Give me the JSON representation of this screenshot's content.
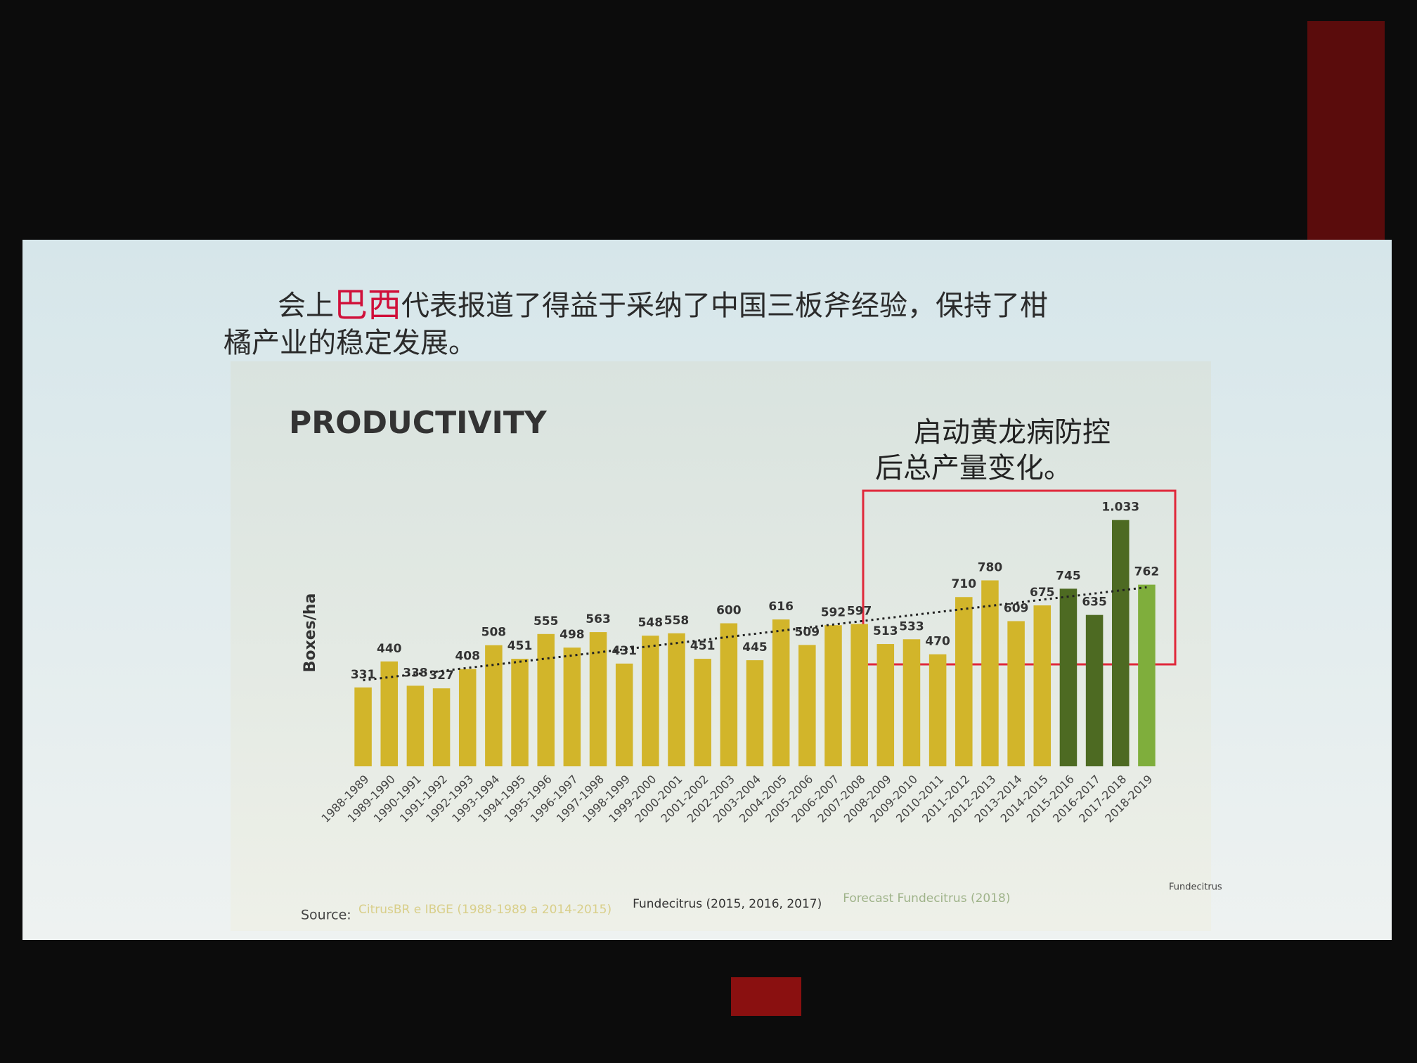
{
  "header": {
    "prefix": "会上",
    "highlight": "巴西",
    "suffix": "代表报道了得益于采纳了中国三板斧经验，保持了柑",
    "line2": "橘产业的稳定发展。"
  },
  "chart_data": {
    "type": "bar",
    "title": "PRODUCTIVITY",
    "y_label": "Boxes/ha",
    "annotation": [
      "启动黄龙病防控",
      "后总产量变化。"
    ],
    "categories": [
      "1988-1989",
      "1989-1990",
      "1990-1991",
      "1991-1992",
      "1992-1993",
      "1993-1994",
      "1994-1995",
      "1995-1996",
      "1996-1997",
      "1997-1998",
      "1998-1999",
      "1999-2000",
      "2000-2001",
      "2001-2002",
      "2002-2003",
      "2003-2004",
      "2004-2005",
      "2005-2006",
      "2006-2007",
      "2007-2008",
      "2008-2009",
      "2009-2010",
      "2010-2011",
      "2011-2012",
      "2012-2013",
      "2013-2014",
      "2014-2015",
      "2015-2016",
      "2016-2017",
      "2017-2018",
      "2018-2019"
    ],
    "values": [
      331,
      440,
      338,
      327,
      408,
      508,
      451,
      555,
      498,
      563,
      431,
      548,
      558,
      451,
      600,
      445,
      616,
      509,
      592,
      597,
      513,
      533,
      470,
      710,
      780,
      609,
      675,
      745,
      635,
      1033,
      762
    ],
    "value_labels": [
      "331",
      "440",
      "338",
      "327",
      "408",
      "508",
      "451",
      "555",
      "498",
      "563",
      "431",
      "548",
      "558",
      "451",
      "600",
      "445",
      "616",
      "509",
      "592",
      "597",
      "513",
      "533",
      "470",
      "710",
      "780",
      "609",
      "675",
      "745",
      "635",
      "1.033",
      "762"
    ],
    "colors": [
      "#d2b52a",
      "#d2b52a",
      "#d2b52a",
      "#d2b52a",
      "#d2b52a",
      "#d2b52a",
      "#d2b52a",
      "#d2b52a",
      "#d2b52a",
      "#d2b52a",
      "#d2b52a",
      "#d2b52a",
      "#d2b52a",
      "#d2b52a",
      "#d2b52a",
      "#d2b52a",
      "#d2b52a",
      "#d2b52a",
      "#d2b52a",
      "#d2b52a",
      "#d2b52a",
      "#d2b52a",
      "#d2b52a",
      "#d2b52a",
      "#d2b52a",
      "#d2b52a",
      "#d2b52a",
      "#4d6a22",
      "#4d6a22",
      "#4d6a22",
      "#7fae3c"
    ],
    "ylim": [
      0,
      1100
    ],
    "source": {
      "label": "Source:",
      "items": [
        {
          "text": "CitrusBR e IBGE (1988-1989 a 2014-2015)",
          "color": "#d9cf8a"
        },
        {
          "text": "Fundecitrus (2015, 2016, 2017)",
          "color": "#333333"
        },
        {
          "text": "Forecast Fundecitrus (2018)",
          "color": "#9fb38a"
        }
      ]
    },
    "logo": "Fundecitrus"
  }
}
